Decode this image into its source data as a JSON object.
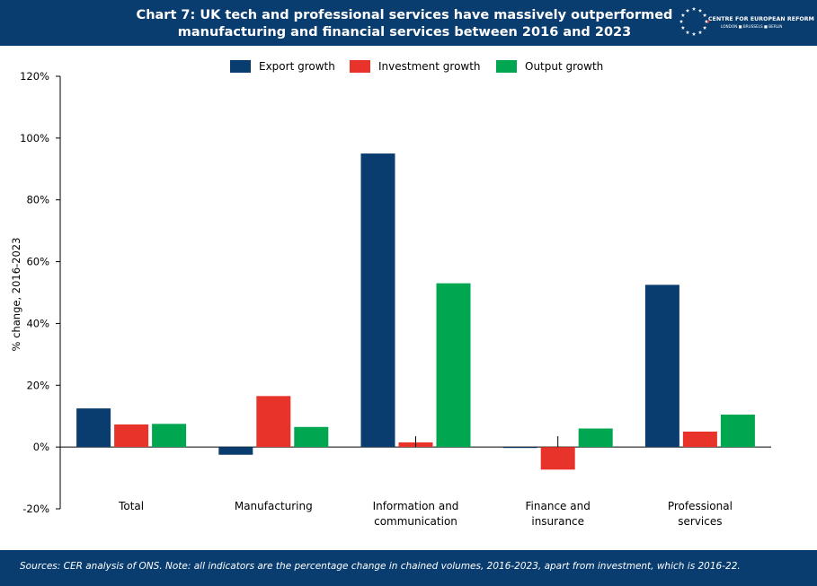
{
  "header": {
    "title_line1": "Chart 7: UK tech and professional services have massively outperformed",
    "title_line2": "manufacturing and financial services between 2016 and 2023",
    "logo_text": "CENTRE FOR EUROPEAN REFORM",
    "logo_sub": "LONDON ■ BRUSSELS ■ BERLIN"
  },
  "footer": {
    "source": "Sources: CER analysis of ONS. Note: all indicators are the percentage change in chained volumes, 2016-2023, apart from investment, which is 2016-22."
  },
  "colors": {
    "export": "#0a3d6f",
    "investment": "#e8332a",
    "output": "#00a650",
    "header_bg": "#0a3d6f"
  },
  "chart_data": {
    "type": "bar",
    "ylabel": "% change, 2016-2023",
    "ylim": [
      -20,
      120
    ],
    "yticks": [
      -20,
      0,
      20,
      40,
      60,
      80,
      100,
      120
    ],
    "ytick_labels": [
      "-20%",
      "0%",
      "20%",
      "40%",
      "60%",
      "80%",
      "100%",
      "120%"
    ],
    "categories": [
      [
        "Total"
      ],
      [
        "Manufacturing"
      ],
      [
        "Information and",
        "communication"
      ],
      [
        "Finance and",
        "insurance"
      ],
      [
        "Professional",
        "services"
      ]
    ],
    "series": [
      {
        "name": "Export growth",
        "color": "#0a3d6f",
        "values": [
          12.5,
          -2.5,
          95,
          -0.3,
          52.5
        ]
      },
      {
        "name": "Investment growth",
        "color": "#e8332a",
        "values": [
          7.3,
          16.5,
          1.5,
          -7.3,
          5
        ]
      },
      {
        "name": "Output growth",
        "color": "#00a650",
        "values": [
          7.5,
          6.5,
          53,
          6,
          10.5
        ]
      }
    ],
    "legend_position": "top"
  }
}
